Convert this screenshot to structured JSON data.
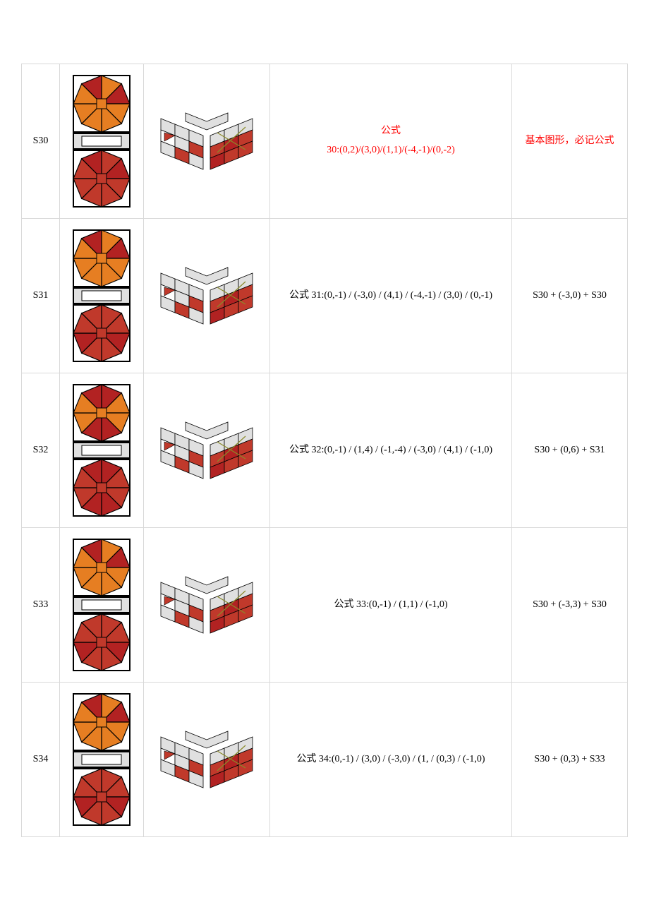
{
  "colors": {
    "orange": "#e67e22",
    "red": "#c0392b",
    "darkred": "#b22222",
    "gray": "#d9d9d9",
    "lightgray": "#e0e0e0",
    "white": "#ffffff",
    "black": "#000000",
    "olive": "#8a8a2a"
  },
  "rows": [
    {
      "id": "S30",
      "formula_pre": "公式",
      "formula": "30:(0,2)/(3,0)/(1,1)/(-4,-1)/(0,-2)",
      "formula_class": "red",
      "note": "基本图形，必记公式",
      "note_class": "red",
      "top_variant": "a",
      "bottom_variant": "a"
    },
    {
      "id": "S31",
      "formula_pre": "",
      "formula": "公式 31:(0,-1) / (-3,0) / (4,1) / (-4,-1) / (3,0) / (0,-1)",
      "formula_class": "black",
      "note": "S30 + (-3,0) + S30",
      "note_class": "black",
      "top_variant": "a",
      "bottom_variant": "b"
    },
    {
      "id": "S32",
      "formula_pre": "",
      "formula": "公式 32:(0,-1) / (1,4) / (-1,-4) / (-3,0) / (4,1) / (-1,0)",
      "formula_class": "black",
      "note": "S30 + (0,6) + S31",
      "note_class": "black",
      "top_variant": "c",
      "bottom_variant": "c"
    },
    {
      "id": "S33",
      "formula_pre": "",
      "formula": "公式 33:(0,-1) / (1,1) / (-1,0)",
      "formula_class": "black",
      "note": "S30 + (-3,3) + S30",
      "note_class": "black",
      "top_variant": "a",
      "bottom_variant": "b"
    },
    {
      "id": "S34",
      "formula_pre": "",
      "formula": "公式 34:(0,-1) / (3,0) / (-3,0) / (1, / (0,3) / (-1,0)",
      "formula_class": "black",
      "note": "S30 + (0,3) + S33",
      "note_class": "black",
      "top_variant": "a",
      "bottom_variant": "b"
    }
  ]
}
